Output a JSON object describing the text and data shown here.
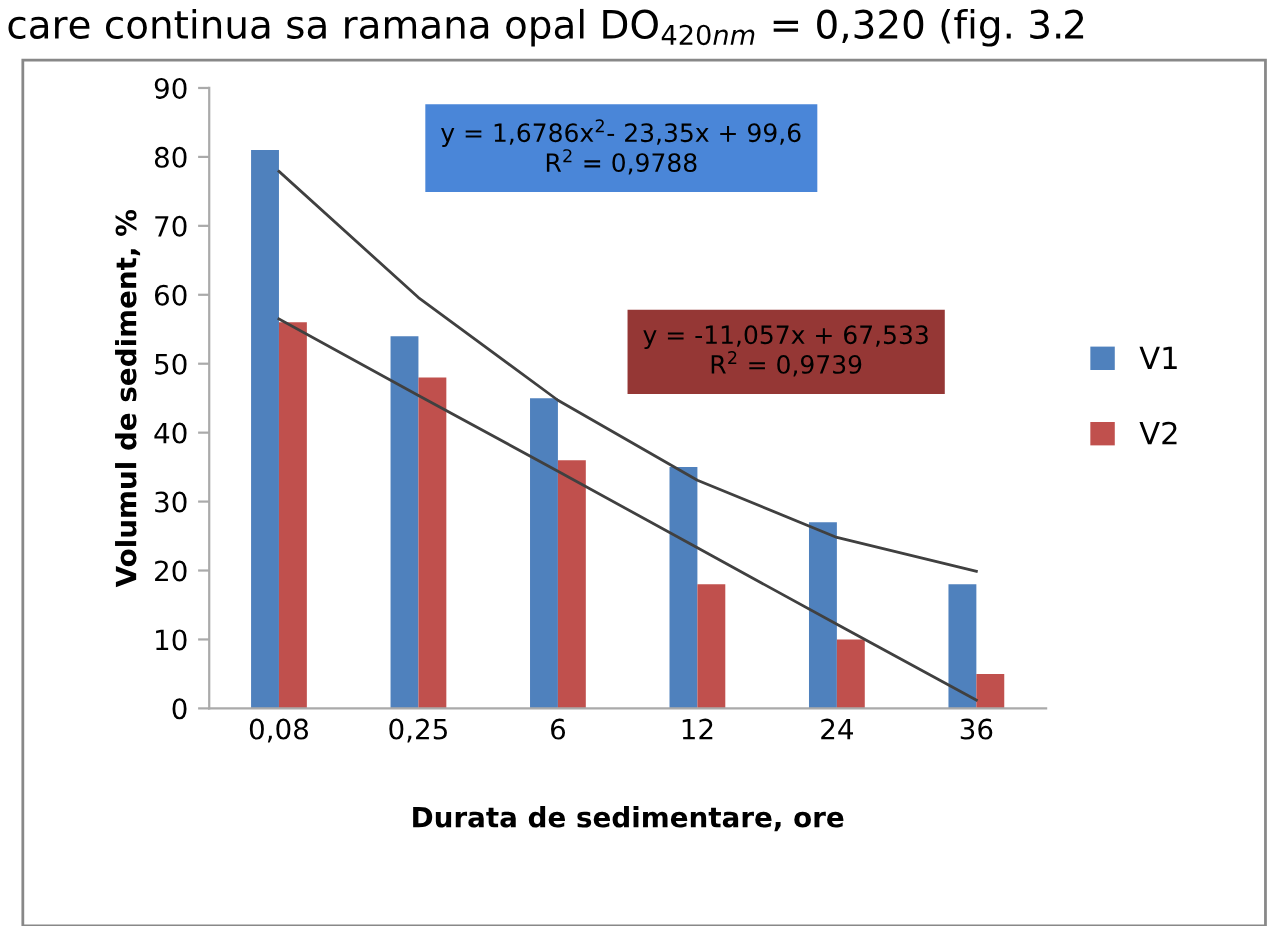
{
  "chart_data": {
    "type": "bar",
    "title": "care continua sa ramana opal DO$_{420nm}$ = 0,320 (fig. 3.2",
    "xlabel": "Durata de sedimentare, ore",
    "ylabel": "Volumul de sediment, %",
    "categories": [
      "0,08",
      "0,25",
      "6",
      "12",
      "24",
      "36"
    ],
    "series": [
      {
        "name": "V1",
        "color": "#4f81bd",
        "values": [
          81,
          54,
          45,
          35,
          27,
          18
        ]
      },
      {
        "name": "V2",
        "color": "#c0504d",
        "values": [
          56,
          48,
          36,
          18,
          10,
          5
        ]
      },
      {
        "type": "line",
        "color": "#404040",
        "values": [
          77.9,
          59.6,
          44.7,
          33.1,
          24.8,
          19.9
        ]
      },
      {
        "type": "line",
        "color": "#404040",
        "values": [
          56.5,
          45.4,
          34.4,
          23.3,
          12.2,
          1.2
        ]
      }
    ],
    "annotations": [
      "y = 1,6786x$^{2}$- 23,35x + 99,6\nR$^{2}$ = 0,9788",
      "y = -11,057x + 67,533\nR$^{2}$ = 0,9739"
    ],
    "ylim": [
      0,
      90
    ],
    "yticks": [
      0,
      10,
      20,
      30,
      40,
      50,
      60,
      70,
      80,
      90
    ],
    "grid": false,
    "legend": "right"
  }
}
